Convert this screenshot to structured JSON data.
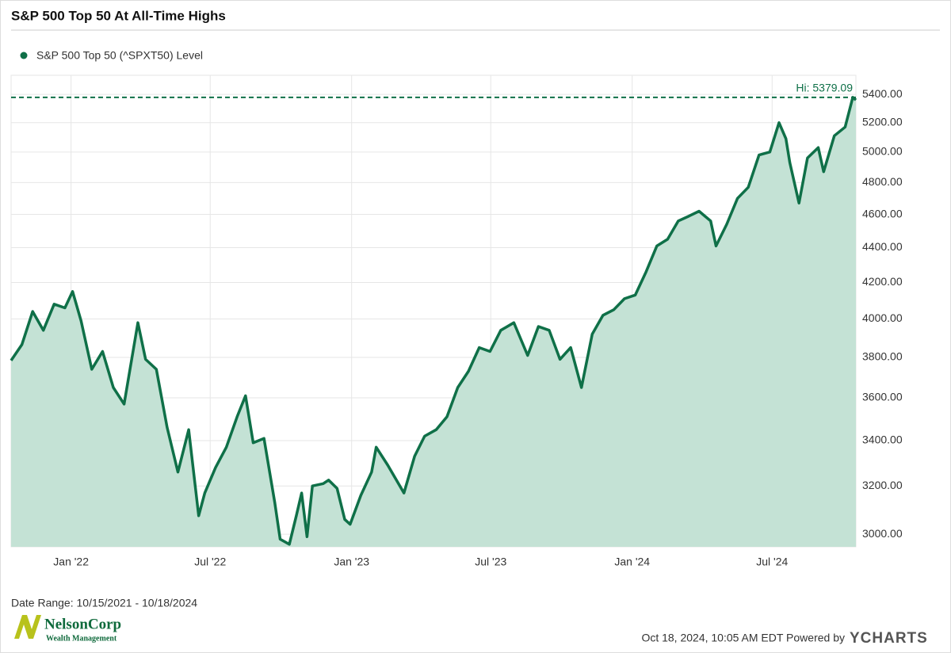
{
  "chart_data": {
    "type": "line",
    "title": "S&P 500 Top 50 At All-Time Highs",
    "x": [
      "2021-10-15",
      "2021-10-29",
      "2021-11-12",
      "2021-11-26",
      "2021-12-10",
      "2021-12-24",
      "2022-01-03",
      "2022-01-14",
      "2022-01-28",
      "2022-02-11",
      "2022-02-25",
      "2022-03-11",
      "2022-03-29",
      "2022-04-08",
      "2022-04-22",
      "2022-05-06",
      "2022-05-20",
      "2022-06-03",
      "2022-06-16",
      "2022-06-24",
      "2022-07-08",
      "2022-07-22",
      "2022-08-05",
      "2022-08-16",
      "2022-08-26",
      "2022-09-09",
      "2022-09-23",
      "2022-09-30",
      "2022-10-12",
      "2022-10-21",
      "2022-10-28",
      "2022-11-04",
      "2022-11-11",
      "2022-11-25",
      "2022-12-02",
      "2022-12-13",
      "2022-12-23",
      "2022-12-30",
      "2023-01-13",
      "2023-01-27",
      "2023-02-02",
      "2023-02-17",
      "2023-03-10",
      "2023-03-24",
      "2023-04-06",
      "2023-04-21",
      "2023-05-05",
      "2023-05-19",
      "2023-06-02",
      "2023-06-16",
      "2023-06-30",
      "2023-07-14",
      "2023-07-31",
      "2023-08-18",
      "2023-09-01",
      "2023-09-15",
      "2023-09-29",
      "2023-10-13",
      "2023-10-27",
      "2023-11-10",
      "2023-11-24",
      "2023-12-08",
      "2023-12-22",
      "2024-01-05",
      "2024-01-19",
      "2024-02-02",
      "2024-02-16",
      "2024-03-01",
      "2024-03-15",
      "2024-03-28",
      "2024-04-12",
      "2024-04-19",
      "2024-05-03",
      "2024-05-17",
      "2024-05-31",
      "2024-06-14",
      "2024-06-28",
      "2024-07-10",
      "2024-07-19",
      "2024-07-24",
      "2024-08-05",
      "2024-08-16",
      "2024-08-30",
      "2024-09-06",
      "2024-09-20",
      "2024-10-04",
      "2024-10-14",
      "2024-10-18"
    ],
    "series": [
      {
        "name": "S&P 500 Top 50 (^SPXT50) Level",
        "color": "#0f7048",
        "fill": "#c4e2d5",
        "values": [
          3784,
          3865,
          4040,
          3940,
          4080,
          4060,
          4150,
          3990,
          3740,
          3830,
          3650,
          3570,
          3980,
          3790,
          3740,
          3460,
          3260,
          3450,
          3075,
          3170,
          3280,
          3370,
          3510,
          3610,
          3390,
          3410,
          3130,
          2980,
          2960,
          3075,
          3170,
          2990,
          3200,
          3210,
          3225,
          3190,
          3060,
          3040,
          3160,
          3260,
          3370,
          3290,
          3170,
          3330,
          3420,
          3450,
          3510,
          3650,
          3730,
          3850,
          3830,
          3940,
          3980,
          3810,
          3960,
          3940,
          3790,
          3850,
          3650,
          3920,
          4020,
          4050,
          4110,
          4130,
          4260,
          4410,
          4450,
          4560,
          4590,
          4620,
          4560,
          4410,
          4540,
          4700,
          4770,
          4980,
          5000,
          5200,
          5090,
          4930,
          4670,
          4960,
          5030,
          4870,
          5110,
          5170,
          5379.09,
          5360
        ]
      }
    ],
    "xlim": [
      "2021-10-15",
      "2024-10-18"
    ],
    "xticks": [
      {
        "value": "2022-01-01",
        "label": "Jan '22"
      },
      {
        "value": "2022-07-01",
        "label": "Jul '22"
      },
      {
        "value": "2023-01-01",
        "label": "Jan '23"
      },
      {
        "value": "2023-07-01",
        "label": "Jul '23"
      },
      {
        "value": "2024-01-01",
        "label": "Jan '24"
      },
      {
        "value": "2024-07-01",
        "label": "Jul '24"
      }
    ],
    "ylim": [
      2950,
      5540
    ],
    "yticks": [
      {
        "value": 3000,
        "label": "3000.00"
      },
      {
        "value": 3200,
        "label": "3200.00"
      },
      {
        "value": 3400,
        "label": "3400.00"
      },
      {
        "value": 3600,
        "label": "3600.00"
      },
      {
        "value": 3800,
        "label": "3800.00"
      },
      {
        "value": 4000,
        "label": "4000.00"
      },
      {
        "value": 4200,
        "label": "4200.00"
      },
      {
        "value": 4400,
        "label": "4400.00"
      },
      {
        "value": 4600,
        "label": "4600.00"
      },
      {
        "value": 4800,
        "label": "4800.00"
      },
      {
        "value": 5000,
        "label": "5000.00"
      },
      {
        "value": 5200,
        "label": "5200.00"
      },
      {
        "value": 5400,
        "label": "5400.00"
      }
    ],
    "log_scale": true,
    "grid": true,
    "annotation": {
      "value": 5379.09,
      "label": "Hi: 5379.09"
    },
    "date_range": "Date Range: 10/15/2021 - 10/18/2024",
    "footer": "Oct 18, 2024, 10:05 AM EDT Powered by",
    "brand": "YCHARTS",
    "logo": {
      "name": "NelsonCorp",
      "tagline": "Wealth Management"
    }
  }
}
